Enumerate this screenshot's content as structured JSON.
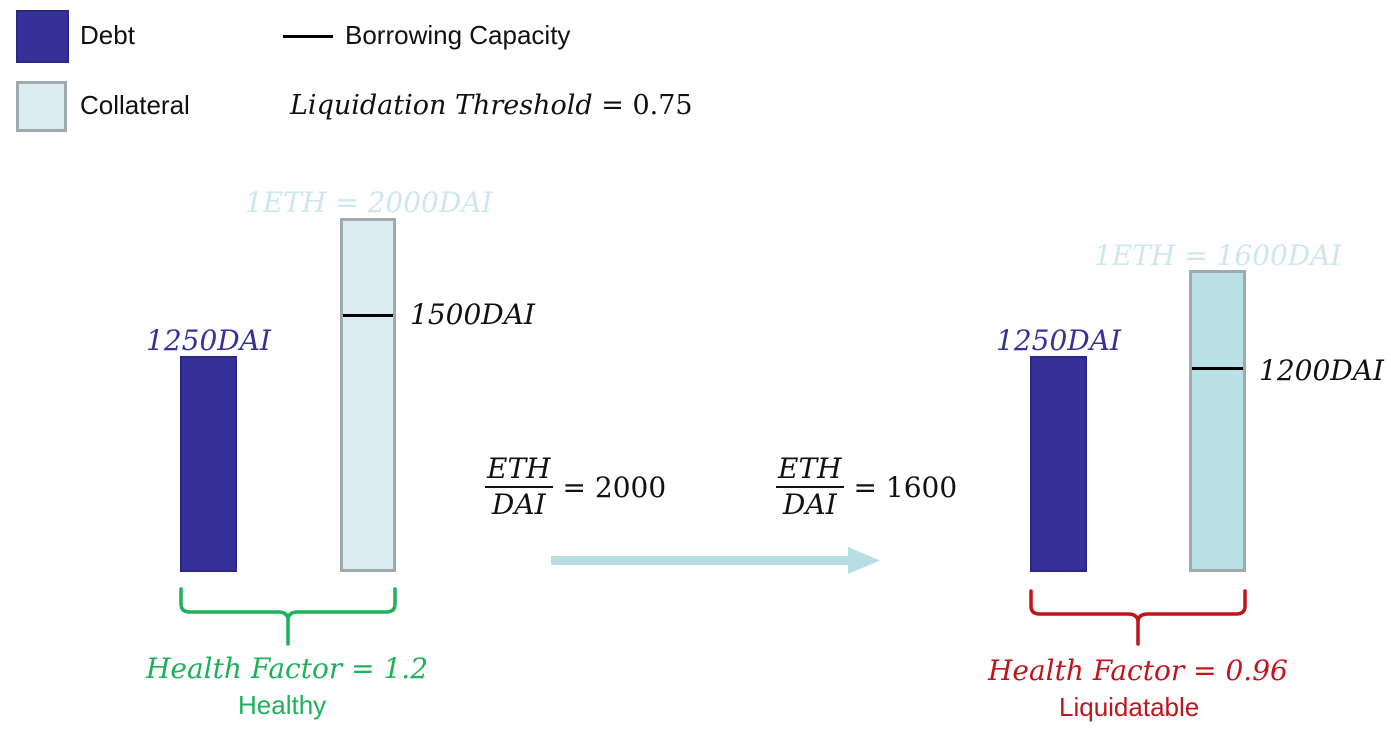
{
  "legend": {
    "debt_label": "Debt",
    "collateral_label": "Collateral",
    "capacity_label": "Borrowing Capacity",
    "threshold_label": "Liquidation Threshold",
    "threshold_eq": "= 0.75"
  },
  "colors": {
    "debt": "#363199",
    "collateral_before": "#dbedf3",
    "collateral_after": "#b9e0e4",
    "healthy": "#1fb15a",
    "liquidatable": "#c0151c",
    "arrow": "#b8dee3",
    "price_label": "#cde7ec"
  },
  "before": {
    "price": "1ETH = 2000DAI",
    "debt_value": "1250DAI",
    "capacity_value": "1500DAI",
    "ratio_num": "ETH",
    "ratio_den": "DAI",
    "ratio_value": "= 2000",
    "health_factor": "Health Factor = 1.2",
    "status": "Healthy"
  },
  "after": {
    "price": "1ETH = 1600DAI",
    "debt_value": "1250DAI",
    "capacity_value": "1200DAI",
    "ratio_num": "ETH",
    "ratio_den": "DAI",
    "ratio_value": "= 1600",
    "health_factor": "Health Factor = 0.96",
    "status": "Liquidatable"
  }
}
